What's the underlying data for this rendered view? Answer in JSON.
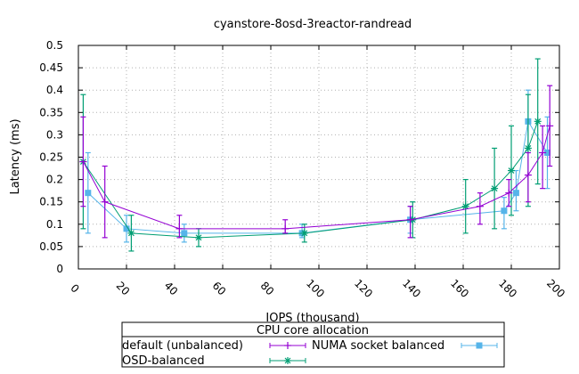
{
  "chart_data": {
    "type": "line",
    "title": "cyanstore-8osd-3reactor-randread",
    "xlabel": "IOPS (thousand)",
    "ylabel": "Latency (ms)",
    "xlim": [
      0,
      200
    ],
    "ylim": [
      0,
      0.5
    ],
    "xticks": [
      "0",
      "20",
      "40",
      "60",
      "80",
      "100",
      "120",
      "140",
      "160",
      "180",
      "200"
    ],
    "yticks": [
      "0",
      "0.05",
      "0.1",
      "0.15",
      "0.2",
      "0.25",
      "0.3",
      "0.35",
      "0.4",
      "0.45",
      "0.5"
    ],
    "grid": true,
    "legend_title": "CPU core allocation",
    "legend_position": "bottom",
    "series": [
      {
        "name": "default (unbalanced)",
        "color": "#9400d3",
        "marker": "plus",
        "points": [
          {
            "x": 2,
            "y": 0.24,
            "ylow": 0.14,
            "yhigh": 0.34
          },
          {
            "x": 11,
            "y": 0.15,
            "ylow": 0.07,
            "yhigh": 0.23
          },
          {
            "x": 42,
            "y": 0.09,
            "ylow": 0.07,
            "yhigh": 0.12
          },
          {
            "x": 86,
            "y": 0.09,
            "ylow": 0.08,
            "yhigh": 0.11
          },
          {
            "x": 138,
            "y": 0.11,
            "ylow": 0.07,
            "yhigh": 0.14
          },
          {
            "x": 167,
            "y": 0.14,
            "ylow": 0.1,
            "yhigh": 0.17
          },
          {
            "x": 179,
            "y": 0.17,
            "ylow": 0.14,
            "yhigh": 0.2
          },
          {
            "x": 187,
            "y": 0.21,
            "ylow": 0.15,
            "yhigh": 0.26
          },
          {
            "x": 193,
            "y": 0.26,
            "ylow": 0.18,
            "yhigh": 0.32
          },
          {
            "x": 196,
            "y": 0.32,
            "ylow": 0.23,
            "yhigh": 0.41
          }
        ]
      },
      {
        "name": "NUMA socket balanced",
        "color": "#56b4e9",
        "marker": "square",
        "points": [
          {
            "x": 4,
            "y": 0.17,
            "ylow": 0.08,
            "yhigh": 0.26
          },
          {
            "x": 20,
            "y": 0.09,
            "ylow": 0.06,
            "yhigh": 0.12
          },
          {
            "x": 44,
            "y": 0.08,
            "ylow": 0.06,
            "yhigh": 0.1
          },
          {
            "x": 93,
            "y": 0.08,
            "ylow": 0.07,
            "yhigh": 0.1
          },
          {
            "x": 138,
            "y": 0.11,
            "ylow": 0.08,
            "yhigh": 0.14
          },
          {
            "x": 177,
            "y": 0.13,
            "ylow": 0.09,
            "yhigh": 0.16
          },
          {
            "x": 182,
            "y": 0.17,
            "ylow": 0.13,
            "yhigh": 0.22
          },
          {
            "x": 187,
            "y": 0.33,
            "ylow": 0.26,
            "yhigh": 0.4
          },
          {
            "x": 195,
            "y": 0.26,
            "ylow": 0.18,
            "yhigh": 0.34
          }
        ]
      },
      {
        "name": "OSD-balanced",
        "color": "#009e73",
        "marker": "star",
        "points": [
          {
            "x": 2,
            "y": 0.24,
            "ylow": 0.09,
            "yhigh": 0.39
          },
          {
            "x": 22,
            "y": 0.08,
            "ylow": 0.04,
            "yhigh": 0.12
          },
          {
            "x": 50,
            "y": 0.07,
            "ylow": 0.05,
            "yhigh": 0.09
          },
          {
            "x": 94,
            "y": 0.08,
            "ylow": 0.06,
            "yhigh": 0.1
          },
          {
            "x": 139,
            "y": 0.11,
            "ylow": 0.07,
            "yhigh": 0.15
          },
          {
            "x": 161,
            "y": 0.14,
            "ylow": 0.08,
            "yhigh": 0.2
          },
          {
            "x": 173,
            "y": 0.18,
            "ylow": 0.09,
            "yhigh": 0.27
          },
          {
            "x": 180,
            "y": 0.22,
            "ylow": 0.12,
            "yhigh": 0.32
          },
          {
            "x": 187,
            "y": 0.27,
            "ylow": 0.14,
            "yhigh": 0.39
          },
          {
            "x": 191,
            "y": 0.33,
            "ylow": 0.19,
            "yhigh": 0.47
          }
        ]
      }
    ]
  }
}
